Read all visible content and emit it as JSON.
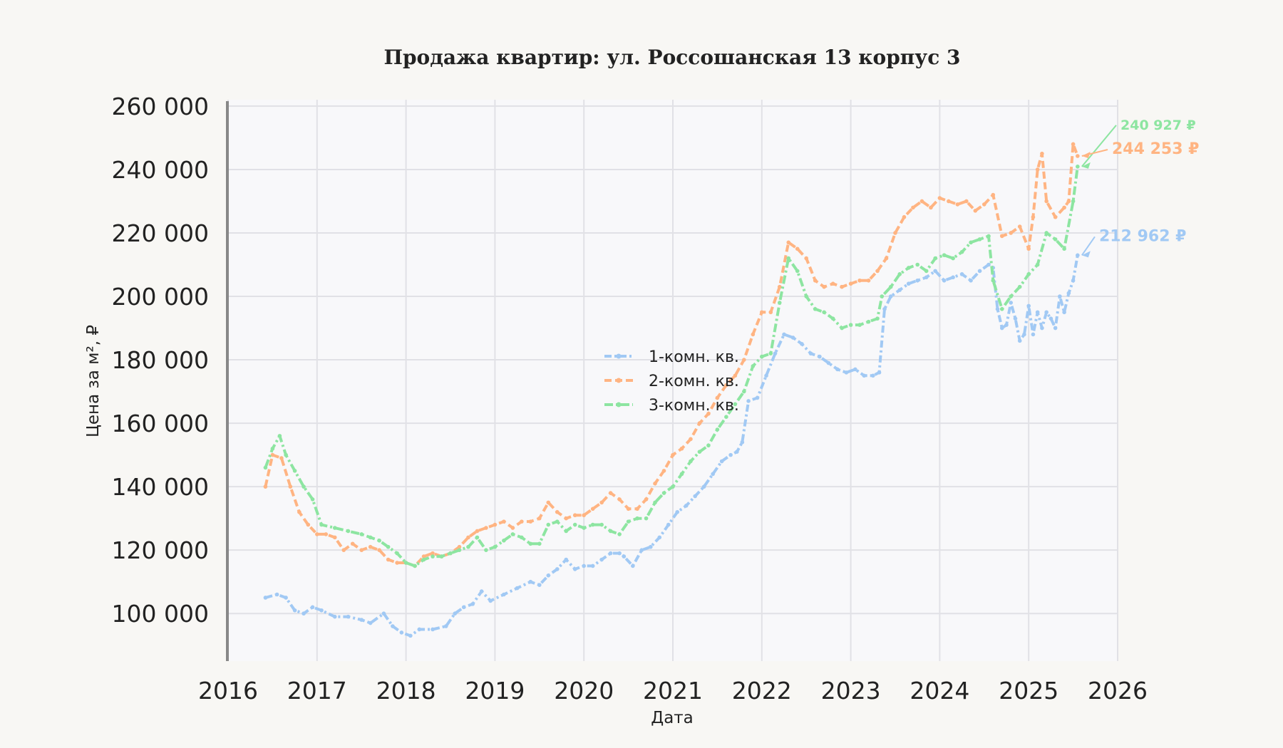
{
  "chart_data": {
    "type": "line",
    "title": "Продажа квартир: ул. Россошанская 13 корпус 3",
    "xlabel": "Дата",
    "ylabel": "Цена за м², ₽",
    "xlim": [
      2016.0,
      2026.0
    ],
    "ylim": [
      85000,
      262000
    ],
    "xticks": [
      2016,
      2017,
      2018,
      2019,
      2020,
      2021,
      2022,
      2023,
      2024,
      2025,
      2026
    ],
    "xtick_labels": [
      "2016",
      "2017",
      "2018",
      "2019",
      "2020",
      "2021",
      "2022",
      "2023",
      "2024",
      "2025",
      "2026"
    ],
    "yticks": [
      100000,
      120000,
      140000,
      160000,
      180000,
      200000,
      220000,
      240000,
      260000
    ],
    "ytick_labels": [
      "100 000",
      "120 000",
      "140 000",
      "160 000",
      "180 000",
      "200 000",
      "220 000",
      "240 000",
      "260 000"
    ],
    "grid": true,
    "legend_position": "center",
    "series": [
      {
        "name": "1-комн. кв.",
        "color": "#a1c9f4",
        "x": [
          2016.42,
          2016.55,
          2016.65,
          2016.75,
          2016.85,
          2016.95,
          2017.05,
          2017.2,
          2017.35,
          2017.5,
          2017.6,
          2017.75,
          2017.85,
          2017.95,
          2018.05,
          2018.15,
          2018.3,
          2018.45,
          2018.55,
          2018.65,
          2018.75,
          2018.85,
          2018.95,
          2019.1,
          2019.25,
          2019.4,
          2019.5,
          2019.6,
          2019.7,
          2019.8,
          2019.9,
          2020.0,
          2020.1,
          2020.2,
          2020.3,
          2020.4,
          2020.45,
          2020.55,
          2020.65,
          2020.75,
          2020.85,
          2020.95,
          2021.05,
          2021.15,
          2021.25,
          2021.35,
          2021.45,
          2021.55,
          2021.65,
          2021.72,
          2021.78,
          2021.85,
          2021.95,
          2022.05,
          2022.15,
          2022.25,
          2022.35,
          2022.45,
          2022.55,
          2022.65,
          2022.75,
          2022.85,
          2022.95,
          2023.05,
          2023.15,
          2023.25,
          2023.32,
          2023.38,
          2023.45,
          2023.55,
          2023.65,
          2023.75,
          2023.85,
          2023.95,
          2024.05,
          2024.15,
          2024.25,
          2024.35,
          2024.45,
          2024.55,
          2024.6,
          2024.65,
          2024.7,
          2024.75,
          2024.8,
          2024.85,
          2024.9,
          2024.95,
          2025.0,
          2025.05,
          2025.1,
          2025.15,
          2025.2,
          2025.25,
          2025.3,
          2025.35,
          2025.4,
          2025.45,
          2025.5,
          2025.55
        ],
        "values": [
          105000,
          106000,
          105000,
          101000,
          100000,
          102000,
          101000,
          99000,
          99000,
          98000,
          97000,
          100000,
          96000,
          94000,
          93000,
          95000,
          95000,
          96000,
          100000,
          102000,
          103000,
          107000,
          104000,
          106000,
          108000,
          110000,
          109000,
          112000,
          114000,
          117000,
          114000,
          115000,
          115000,
          117000,
          119000,
          119000,
          118000,
          115000,
          120000,
          121000,
          124000,
          128000,
          132000,
          134000,
          137000,
          140000,
          144000,
          148000,
          150000,
          151000,
          154000,
          167000,
          168000,
          175000,
          182000,
          188000,
          187000,
          185000,
          182000,
          181000,
          179000,
          177000,
          176000,
          177000,
          175000,
          175000,
          176000,
          196000,
          200000,
          202000,
          204000,
          205000,
          206000,
          208000,
          205000,
          206000,
          207000,
          205000,
          208000,
          210000,
          209000,
          196000,
          190000,
          191000,
          198000,
          193000,
          186000,
          188000,
          197000,
          188000,
          195000,
          190000,
          195000,
          193000,
          190000,
          200000,
          195000,
          201000,
          205000,
          212962
        ]
      },
      {
        "name": "2-комн. кв.",
        "color": "#ffb482",
        "x": [
          2016.42,
          2016.5,
          2016.6,
          2016.7,
          2016.8,
          2016.9,
          2017.0,
          2017.1,
          2017.2,
          2017.3,
          2017.4,
          2017.5,
          2017.6,
          2017.7,
          2017.8,
          2017.9,
          2018.0,
          2018.1,
          2018.2,
          2018.3,
          2018.4,
          2018.5,
          2018.6,
          2018.7,
          2018.8,
          2018.9,
          2019.0,
          2019.1,
          2019.2,
          2019.3,
          2019.4,
          2019.5,
          2019.6,
          2019.7,
          2019.8,
          2019.9,
          2020.0,
          2020.1,
          2020.2,
          2020.3,
          2020.4,
          2020.5,
          2020.6,
          2020.7,
          2020.8,
          2020.9,
          2021.0,
          2021.1,
          2021.2,
          2021.3,
          2021.4,
          2021.5,
          2021.6,
          2021.7,
          2021.8,
          2021.9,
          2022.0,
          2022.1,
          2022.2,
          2022.3,
          2022.4,
          2022.5,
          2022.6,
          2022.7,
          2022.8,
          2022.9,
          2023.0,
          2023.1,
          2023.2,
          2023.3,
          2023.4,
          2023.5,
          2023.6,
          2023.7,
          2023.8,
          2023.9,
          2024.0,
          2024.1,
          2024.2,
          2024.3,
          2024.4,
          2024.5,
          2024.6,
          2024.7,
          2024.8,
          2024.9,
          2025.0,
          2025.05,
          2025.1,
          2025.15,
          2025.2,
          2025.3,
          2025.4,
          2025.45,
          2025.5,
          2025.55
        ],
        "values": [
          140000,
          150000,
          149000,
          140000,
          132000,
          128000,
          125000,
          125000,
          124000,
          120000,
          122000,
          120000,
          121000,
          120000,
          117000,
          116000,
          116000,
          115000,
          118000,
          119000,
          118000,
          119000,
          121000,
          124000,
          126000,
          127000,
          128000,
          129000,
          127000,
          129000,
          129000,
          130000,
          135000,
          132000,
          130000,
          131000,
          131000,
          133000,
          135000,
          138000,
          136000,
          133000,
          133000,
          136000,
          141000,
          145000,
          150000,
          152000,
          155000,
          160000,
          163000,
          168000,
          172000,
          175000,
          180000,
          188000,
          195000,
          195000,
          203000,
          217000,
          215000,
          212000,
          205000,
          203000,
          204000,
          203000,
          204000,
          205000,
          205000,
          208000,
          212000,
          220000,
          225000,
          228000,
          230000,
          228000,
          231000,
          230000,
          229000,
          230000,
          227000,
          229000,
          232000,
          219000,
          220000,
          222000,
          215000,
          225000,
          240000,
          245000,
          230000,
          225000,
          228000,
          230000,
          248000,
          244253
        ]
      },
      {
        "name": "3-комн. кв.",
        "color": "#8de5a1",
        "x": [
          2016.42,
          2016.5,
          2016.58,
          2016.65,
          2016.75,
          2016.85,
          2016.95,
          2017.05,
          2017.2,
          2017.35,
          2017.5,
          2017.6,
          2017.7,
          2017.8,
          2017.9,
          2018.0,
          2018.1,
          2018.2,
          2018.3,
          2018.4,
          2018.5,
          2018.6,
          2018.7,
          2018.8,
          2018.9,
          2019.0,
          2019.1,
          2019.2,
          2019.3,
          2019.4,
          2019.5,
          2019.6,
          2019.7,
          2019.8,
          2019.9,
          2020.0,
          2020.1,
          2020.2,
          2020.3,
          2020.4,
          2020.5,
          2020.6,
          2020.7,
          2020.8,
          2020.9,
          2021.0,
          2021.1,
          2021.2,
          2021.3,
          2021.4,
          2021.5,
          2021.6,
          2021.7,
          2021.8,
          2021.9,
          2022.0,
          2022.1,
          2022.2,
          2022.3,
          2022.4,
          2022.5,
          2022.6,
          2022.7,
          2022.8,
          2022.9,
          2023.0,
          2023.1,
          2023.2,
          2023.3,
          2023.35,
          2023.45,
          2023.55,
          2023.65,
          2023.75,
          2023.85,
          2023.95,
          2024.05,
          2024.15,
          2024.25,
          2024.35,
          2024.45,
          2024.55,
          2024.6,
          2024.7,
          2024.8,
          2024.9,
          2025.0,
          2025.1,
          2025.2,
          2025.3,
          2025.4,
          2025.5,
          2025.55
        ],
        "values": [
          146000,
          152000,
          156000,
          150000,
          145000,
          140000,
          136000,
          128000,
          127000,
          126000,
          125000,
          124000,
          123000,
          121000,
          119000,
          116000,
          115000,
          117000,
          118000,
          118000,
          119000,
          120000,
          121000,
          124000,
          120000,
          121000,
          123000,
          125000,
          124000,
          122000,
          122000,
          128000,
          129000,
          126000,
          128000,
          127000,
          128000,
          128000,
          126000,
          125000,
          129000,
          130000,
          130000,
          135000,
          138000,
          140000,
          144000,
          148000,
          151000,
          153000,
          158000,
          162000,
          166000,
          170000,
          178000,
          181000,
          182000,
          198000,
          212000,
          208000,
          200000,
          196000,
          195000,
          193000,
          190000,
          191000,
          191000,
          192000,
          193000,
          200000,
          203000,
          207000,
          209000,
          210000,
          208000,
          212000,
          213000,
          212000,
          214000,
          217000,
          218000,
          219000,
          205000,
          196000,
          200000,
          203000,
          207000,
          210000,
          220000,
          218000,
          215000,
          230000,
          240927
        ]
      }
    ],
    "end_labels": [
      {
        "series": "3-комн. кв.",
        "text": "240 927 ₽"
      },
      {
        "series": "2-комн. кв.",
        "text": "244 253 ₽"
      },
      {
        "series": "1-комн. кв.",
        "text": "212 962 ₽"
      }
    ]
  }
}
